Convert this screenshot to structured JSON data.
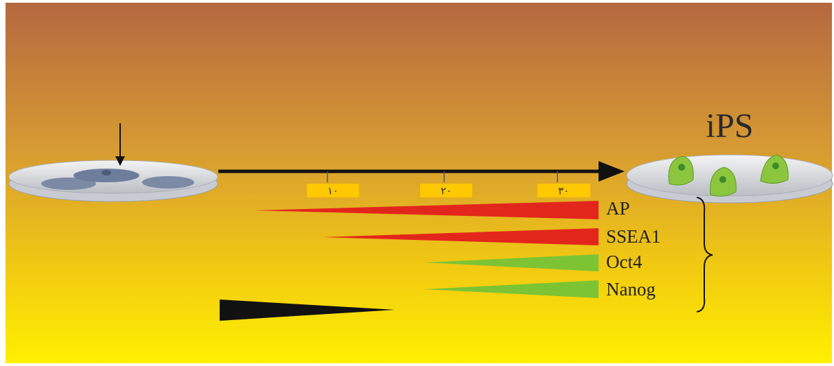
{
  "title": "iPS",
  "timeline": {
    "ticks": [
      "١٠",
      "٢٠",
      "٣٠"
    ]
  },
  "markers": [
    {
      "label": "AP"
    },
    {
      "label": "SSEA1"
    },
    {
      "label": "Oct4"
    },
    {
      "label": "Nanog"
    }
  ]
}
